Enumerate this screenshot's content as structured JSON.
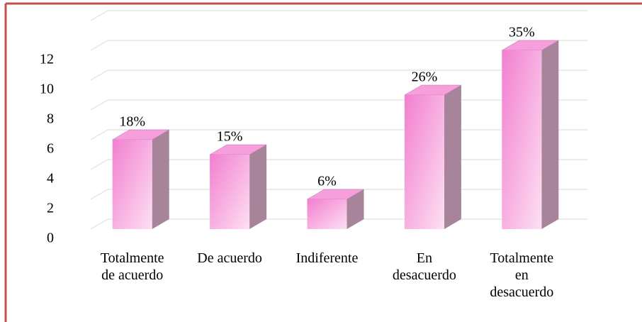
{
  "chart_data": {
    "type": "bar3d",
    "categories": [
      "Totalmente de acuerdo",
      "De acuerdo",
      "Indiferente",
      "En desacuerdo",
      "Totalmente en desacuerdo"
    ],
    "values": [
      6,
      5,
      2,
      9,
      12
    ],
    "value_labels": [
      "18%",
      "15%",
      "6%",
      "26%",
      "35%"
    ],
    "color": "#f27fd0",
    "ylim": [
      0,
      14
    ],
    "yticks": [
      0,
      2,
      4,
      6,
      8,
      10,
      12
    ],
    "grid": true
  }
}
